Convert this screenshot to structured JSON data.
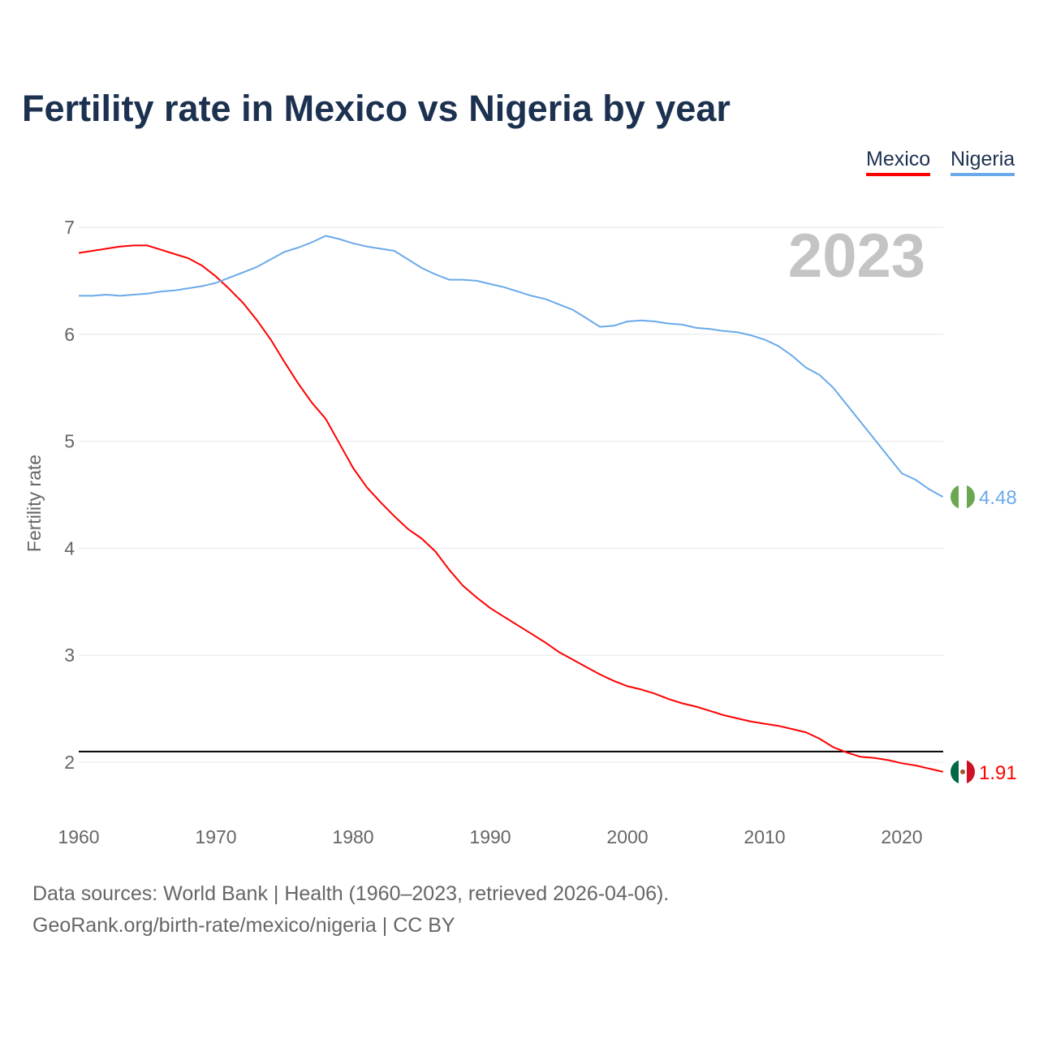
{
  "title": "Fertility rate in Mexico vs Nigeria by year",
  "footer": {
    "line1": "Data sources: World Bank | Health (1960–2023, retrieved 2026-04-06).",
    "line2": "GeoRank.org/birth-rate/mexico/nigeria | CC BY"
  },
  "chart_data": {
    "type": "line",
    "title": "Fertility rate in Mexico vs Nigeria by year",
    "xlabel": "",
    "ylabel": "Fertility rate",
    "xlim": [
      1960,
      2023
    ],
    "ylim": [
      1.5,
      7.0
    ],
    "xticks": [
      "1960",
      "1970",
      "1980",
      "1990",
      "2000",
      "2010",
      "2020"
    ],
    "yticks": [
      "2",
      "3",
      "4",
      "5",
      "6",
      "7"
    ],
    "year_label": "2023",
    "reference_line": 2.1,
    "legend": [
      "Mexico",
      "Nigeria"
    ],
    "legend_position": "top-right",
    "colors": {
      "Mexico": "#ff0000",
      "Nigeria": "#6aaaea",
      "reference": "#000000"
    },
    "x": [
      1960,
      1961,
      1962,
      1963,
      1964,
      1965,
      1966,
      1967,
      1968,
      1969,
      1970,
      1971,
      1972,
      1973,
      1974,
      1975,
      1976,
      1977,
      1978,
      1979,
      1980,
      1981,
      1982,
      1983,
      1984,
      1985,
      1986,
      1987,
      1988,
      1989,
      1990,
      1991,
      1992,
      1993,
      1994,
      1995,
      1996,
      1997,
      1998,
      1999,
      2000,
      2001,
      2002,
      2003,
      2004,
      2005,
      2006,
      2007,
      2008,
      2009,
      2010,
      2011,
      2012,
      2013,
      2014,
      2015,
      2016,
      2017,
      2018,
      2019,
      2020,
      2021,
      2022,
      2023
    ],
    "series": [
      {
        "name": "Mexico",
        "end_label": "1.91",
        "values": [
          6.76,
          6.78,
          6.8,
          6.82,
          6.83,
          6.83,
          6.79,
          6.75,
          6.71,
          6.64,
          6.54,
          6.42,
          6.29,
          6.13,
          5.95,
          5.74,
          5.54,
          5.36,
          5.21,
          4.98,
          4.75,
          4.57,
          4.43,
          4.3,
          4.18,
          4.09,
          3.97,
          3.8,
          3.65,
          3.54,
          3.44,
          3.36,
          3.28,
          3.2,
          3.12,
          3.03,
          2.96,
          2.89,
          2.82,
          2.76,
          2.71,
          2.68,
          2.64,
          2.59,
          2.55,
          2.52,
          2.48,
          2.44,
          2.41,
          2.38,
          2.36,
          2.34,
          2.31,
          2.28,
          2.22,
          2.14,
          2.09,
          2.05,
          2.04,
          2.02,
          1.99,
          1.97,
          1.94,
          1.91
        ]
      },
      {
        "name": "Nigeria",
        "end_label": "4.48",
        "values": [
          6.36,
          6.36,
          6.37,
          6.36,
          6.37,
          6.38,
          6.4,
          6.41,
          6.43,
          6.45,
          6.48,
          6.53,
          6.58,
          6.63,
          6.7,
          6.77,
          6.81,
          6.86,
          6.92,
          6.89,
          6.85,
          6.82,
          6.8,
          6.78,
          6.7,
          6.62,
          6.56,
          6.51,
          6.51,
          6.5,
          6.47,
          6.44,
          6.4,
          6.36,
          6.33,
          6.28,
          6.23,
          6.15,
          6.07,
          6.08,
          6.12,
          6.13,
          6.12,
          6.1,
          6.09,
          6.06,
          6.05,
          6.03,
          6.02,
          5.99,
          5.95,
          5.89,
          5.8,
          5.69,
          5.62,
          5.5,
          5.34,
          5.18,
          5.02,
          4.86,
          4.7,
          4.64,
          4.55,
          4.48
        ]
      }
    ]
  }
}
